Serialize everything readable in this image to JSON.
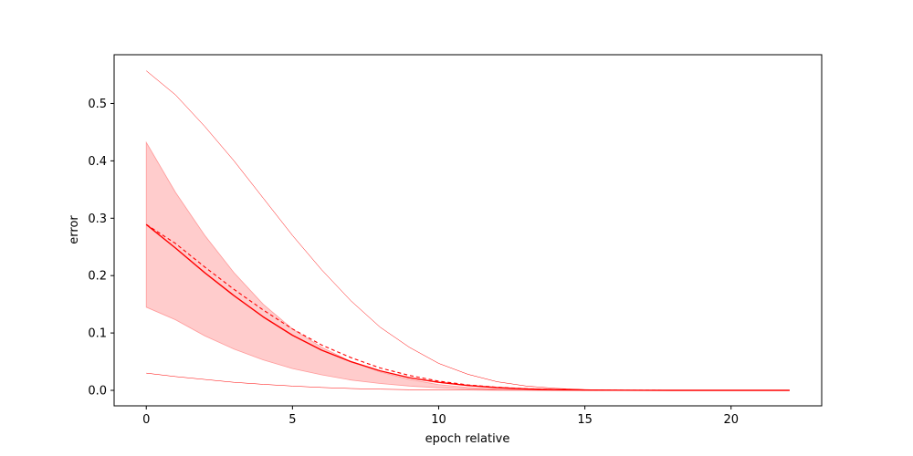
{
  "chart_data": {
    "type": "line",
    "title": "",
    "xlabel": "epoch relative",
    "ylabel": "error",
    "xlim": [
      -1.1,
      23.1
    ],
    "ylim": [
      -0.027,
      0.585
    ],
    "xticks": [
      0,
      5,
      10,
      15,
      20
    ],
    "yticks": [
      0.0,
      0.1,
      0.2,
      0.3,
      0.4,
      0.5
    ],
    "xtick_labels": [
      "0",
      "5",
      "10",
      "15",
      "20"
    ],
    "ytick_labels": [
      "0.0",
      "0.1",
      "0.2",
      "0.3",
      "0.4",
      "0.5"
    ],
    "grid": false,
    "legend": "none",
    "colors": {
      "line": "#ff0000",
      "band_fill": "#ffcccc",
      "band_edge": "#ff9a9a",
      "axis": "#000000"
    },
    "x": [
      0,
      1,
      2,
      3,
      4,
      5,
      6,
      7,
      8,
      9,
      10,
      11,
      12,
      13,
      14,
      15,
      16,
      17,
      18,
      19,
      20,
      21,
      22
    ],
    "series": [
      {
        "style": "solid",
        "values": [
          0.289,
          0.248,
          0.205,
          0.165,
          0.128,
          0.096,
          0.07,
          0.05,
          0.034,
          0.022,
          0.014,
          0.0085,
          0.0048,
          0.0025,
          0.0012,
          0.0006,
          0.0003,
          0.0001,
          0.0,
          0.0,
          0.0,
          0.0,
          0.0
        ]
      },
      {
        "style": "dashed",
        "values": [
          0.289,
          0.256,
          0.215,
          0.176,
          0.14,
          0.107,
          0.079,
          0.057,
          0.039,
          0.026,
          0.016,
          0.0095,
          0.0054,
          0.0028,
          0.0014,
          0.0007,
          0.0003,
          0.0001,
          0.0,
          0.0,
          0.0,
          0.0,
          0.0
        ]
      },
      {
        "style": "thin-upper",
        "values": [
          0.557,
          0.515,
          0.46,
          0.4,
          0.335,
          0.27,
          0.21,
          0.156,
          0.11,
          0.075,
          0.047,
          0.028,
          0.015,
          0.0075,
          0.0034,
          0.0014,
          0.0005,
          0.0002,
          0.0,
          0.0,
          0.0,
          0.0,
          0.0
        ]
      },
      {
        "style": "thin-lower",
        "values": [
          0.03,
          0.024,
          0.019,
          0.014,
          0.0105,
          0.0075,
          0.005,
          0.0032,
          0.002,
          0.0012,
          0.0007,
          0.0004,
          0.0002,
          0.0001,
          0.0,
          0.0,
          0.0,
          0.0,
          0.0,
          0.0,
          0.0,
          0.0,
          0.0
        ]
      }
    ],
    "band": {
      "upper": [
        0.432,
        0.345,
        0.27,
        0.205,
        0.15,
        0.107,
        0.075,
        0.05,
        0.032,
        0.019,
        0.01,
        0.005,
        0.0022,
        0.0009,
        0.0003,
        0.0001,
        0.0,
        0.0,
        0.0,
        0.0,
        0.0,
        0.0,
        0.0
      ],
      "lower": [
        0.145,
        0.123,
        0.095,
        0.072,
        0.053,
        0.038,
        0.027,
        0.018,
        0.012,
        0.0075,
        0.0045,
        0.0025,
        0.0013,
        0.0006,
        0.0002,
        0.0001,
        0.0,
        0.0,
        0.0,
        0.0,
        0.0,
        0.0,
        0.0
      ]
    }
  }
}
